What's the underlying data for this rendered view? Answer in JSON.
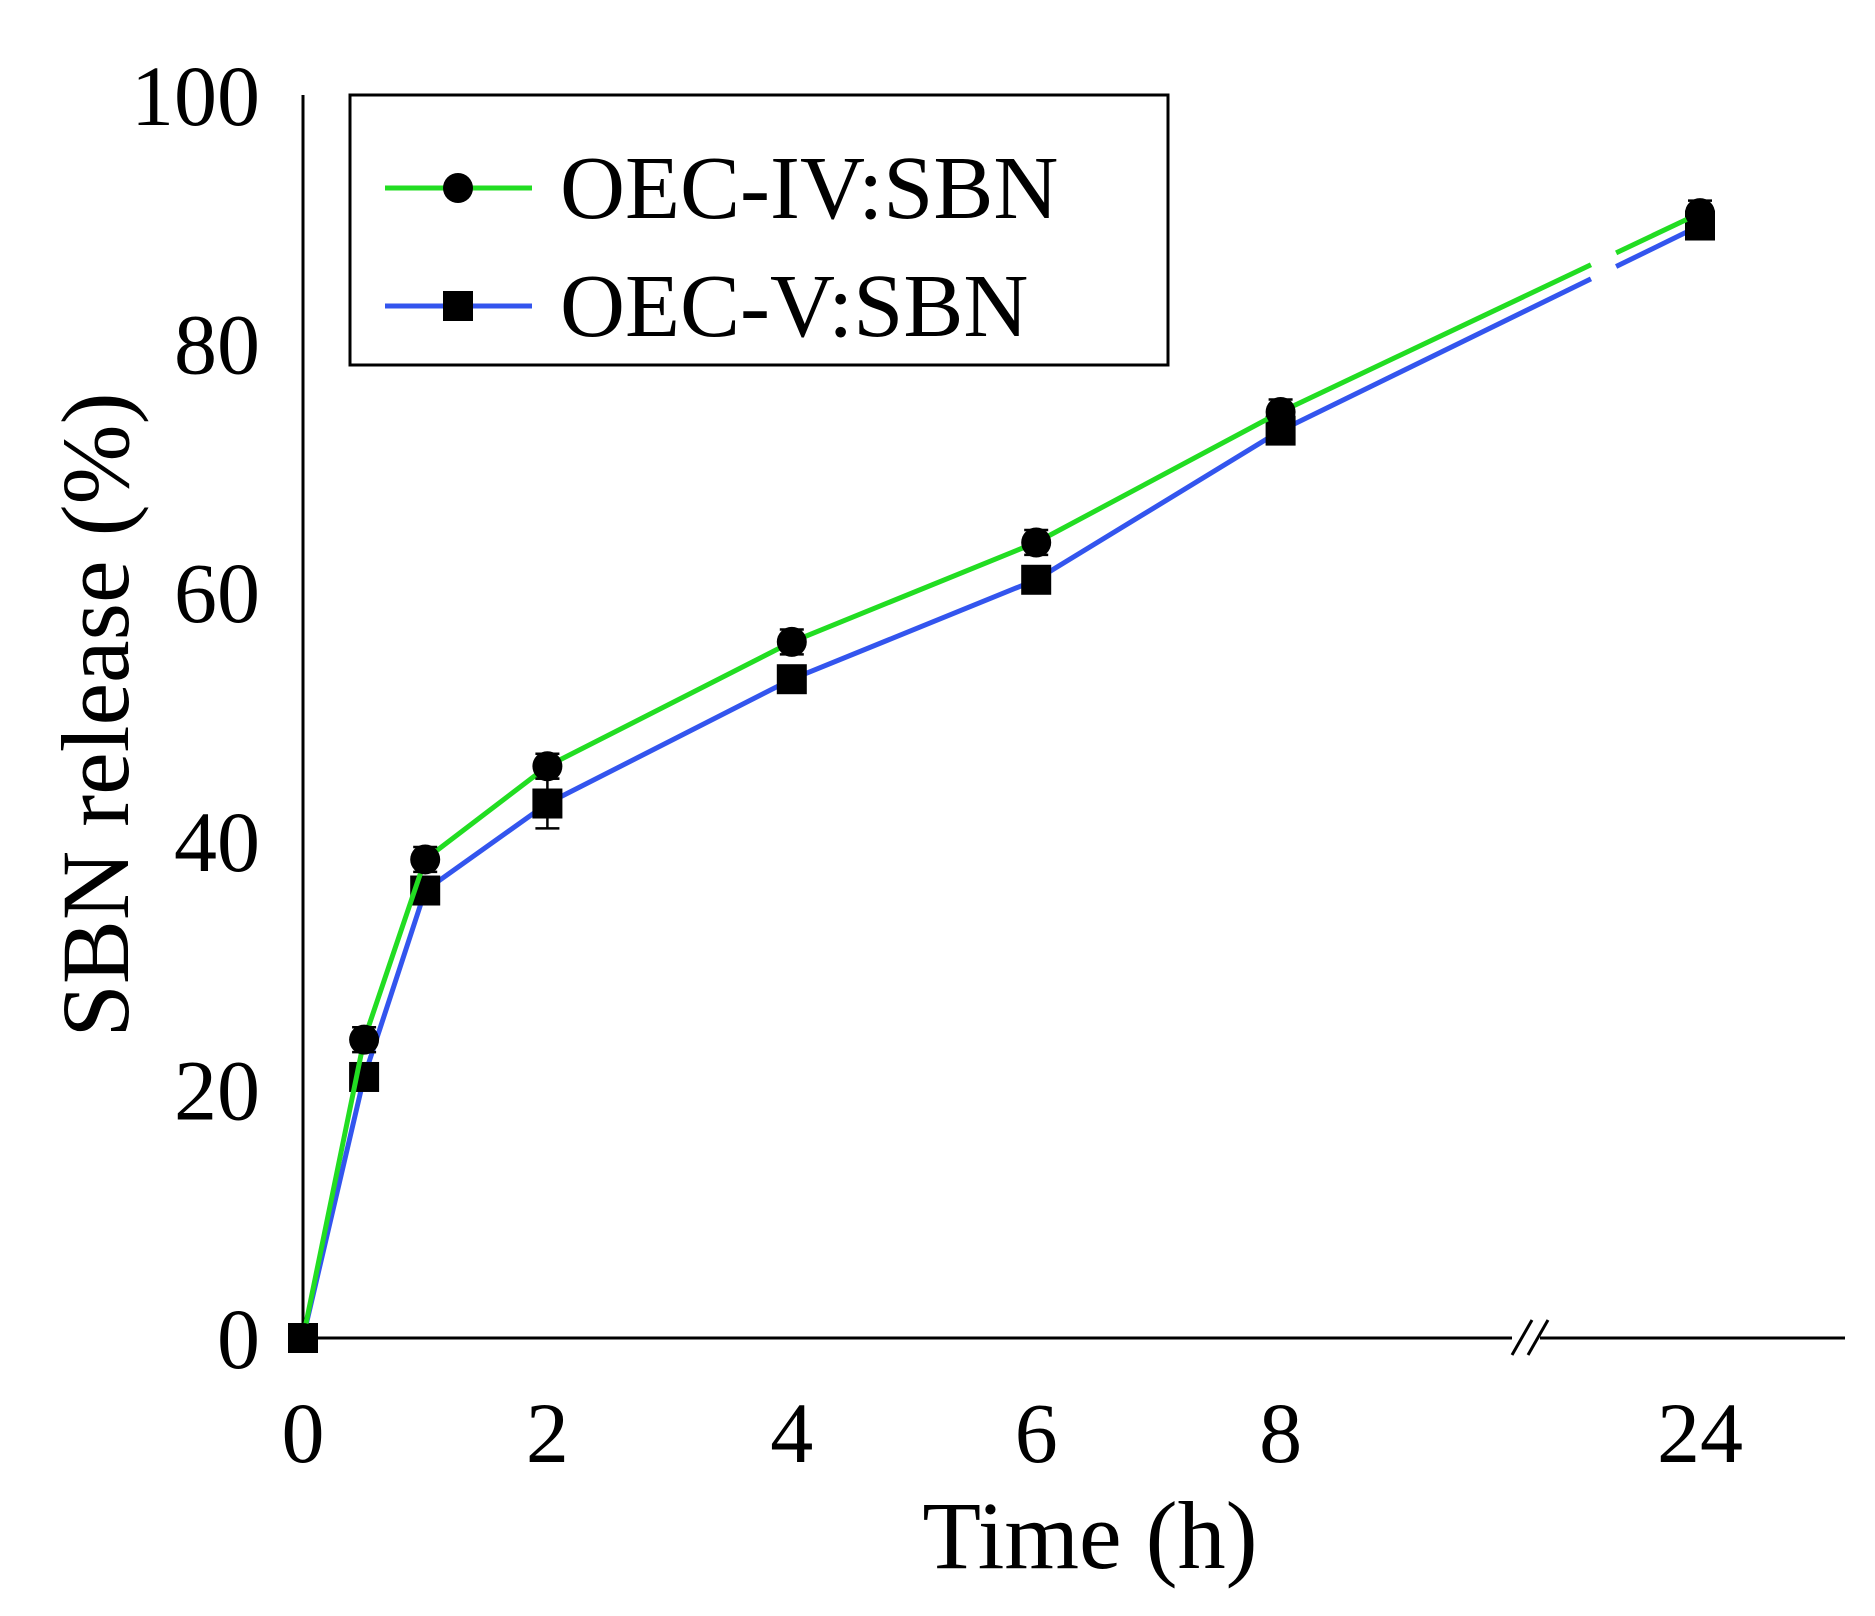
{
  "chart_data": {
    "type": "line",
    "title": "",
    "xlabel": "Time (h)",
    "ylabel": "SBN release (%)",
    "ylim": [
      0,
      100
    ],
    "yticks": [
      "0",
      "20",
      "40",
      "60",
      "80",
      "100"
    ],
    "xticks": [
      "0",
      "2",
      "4",
      "6",
      "8",
      "24"
    ],
    "x_axis_break": "between 8 and 24",
    "legend_position": "top-left",
    "series": [
      {
        "name": "OEC-IV:SBN",
        "color": "#22dd22",
        "marker": "circle",
        "x": [
          0,
          0.5,
          1,
          2,
          4,
          6,
          8,
          24
        ],
        "values": [
          0,
          24,
          38.5,
          46,
          56,
          64,
          74.5,
          90.5
        ],
        "errors": [
          0,
          1,
          1,
          1,
          1,
          1,
          1,
          1
        ]
      },
      {
        "name": "OEC-V:SBN",
        "color": "#3355ee",
        "marker": "square",
        "x": [
          0,
          0.5,
          1,
          2,
          4,
          6,
          8,
          24
        ],
        "values": [
          0,
          21,
          36,
          43,
          53,
          61,
          73,
          89.5
        ],
        "errors": [
          0,
          1,
          1,
          2,
          1,
          1,
          1,
          1
        ]
      }
    ]
  }
}
